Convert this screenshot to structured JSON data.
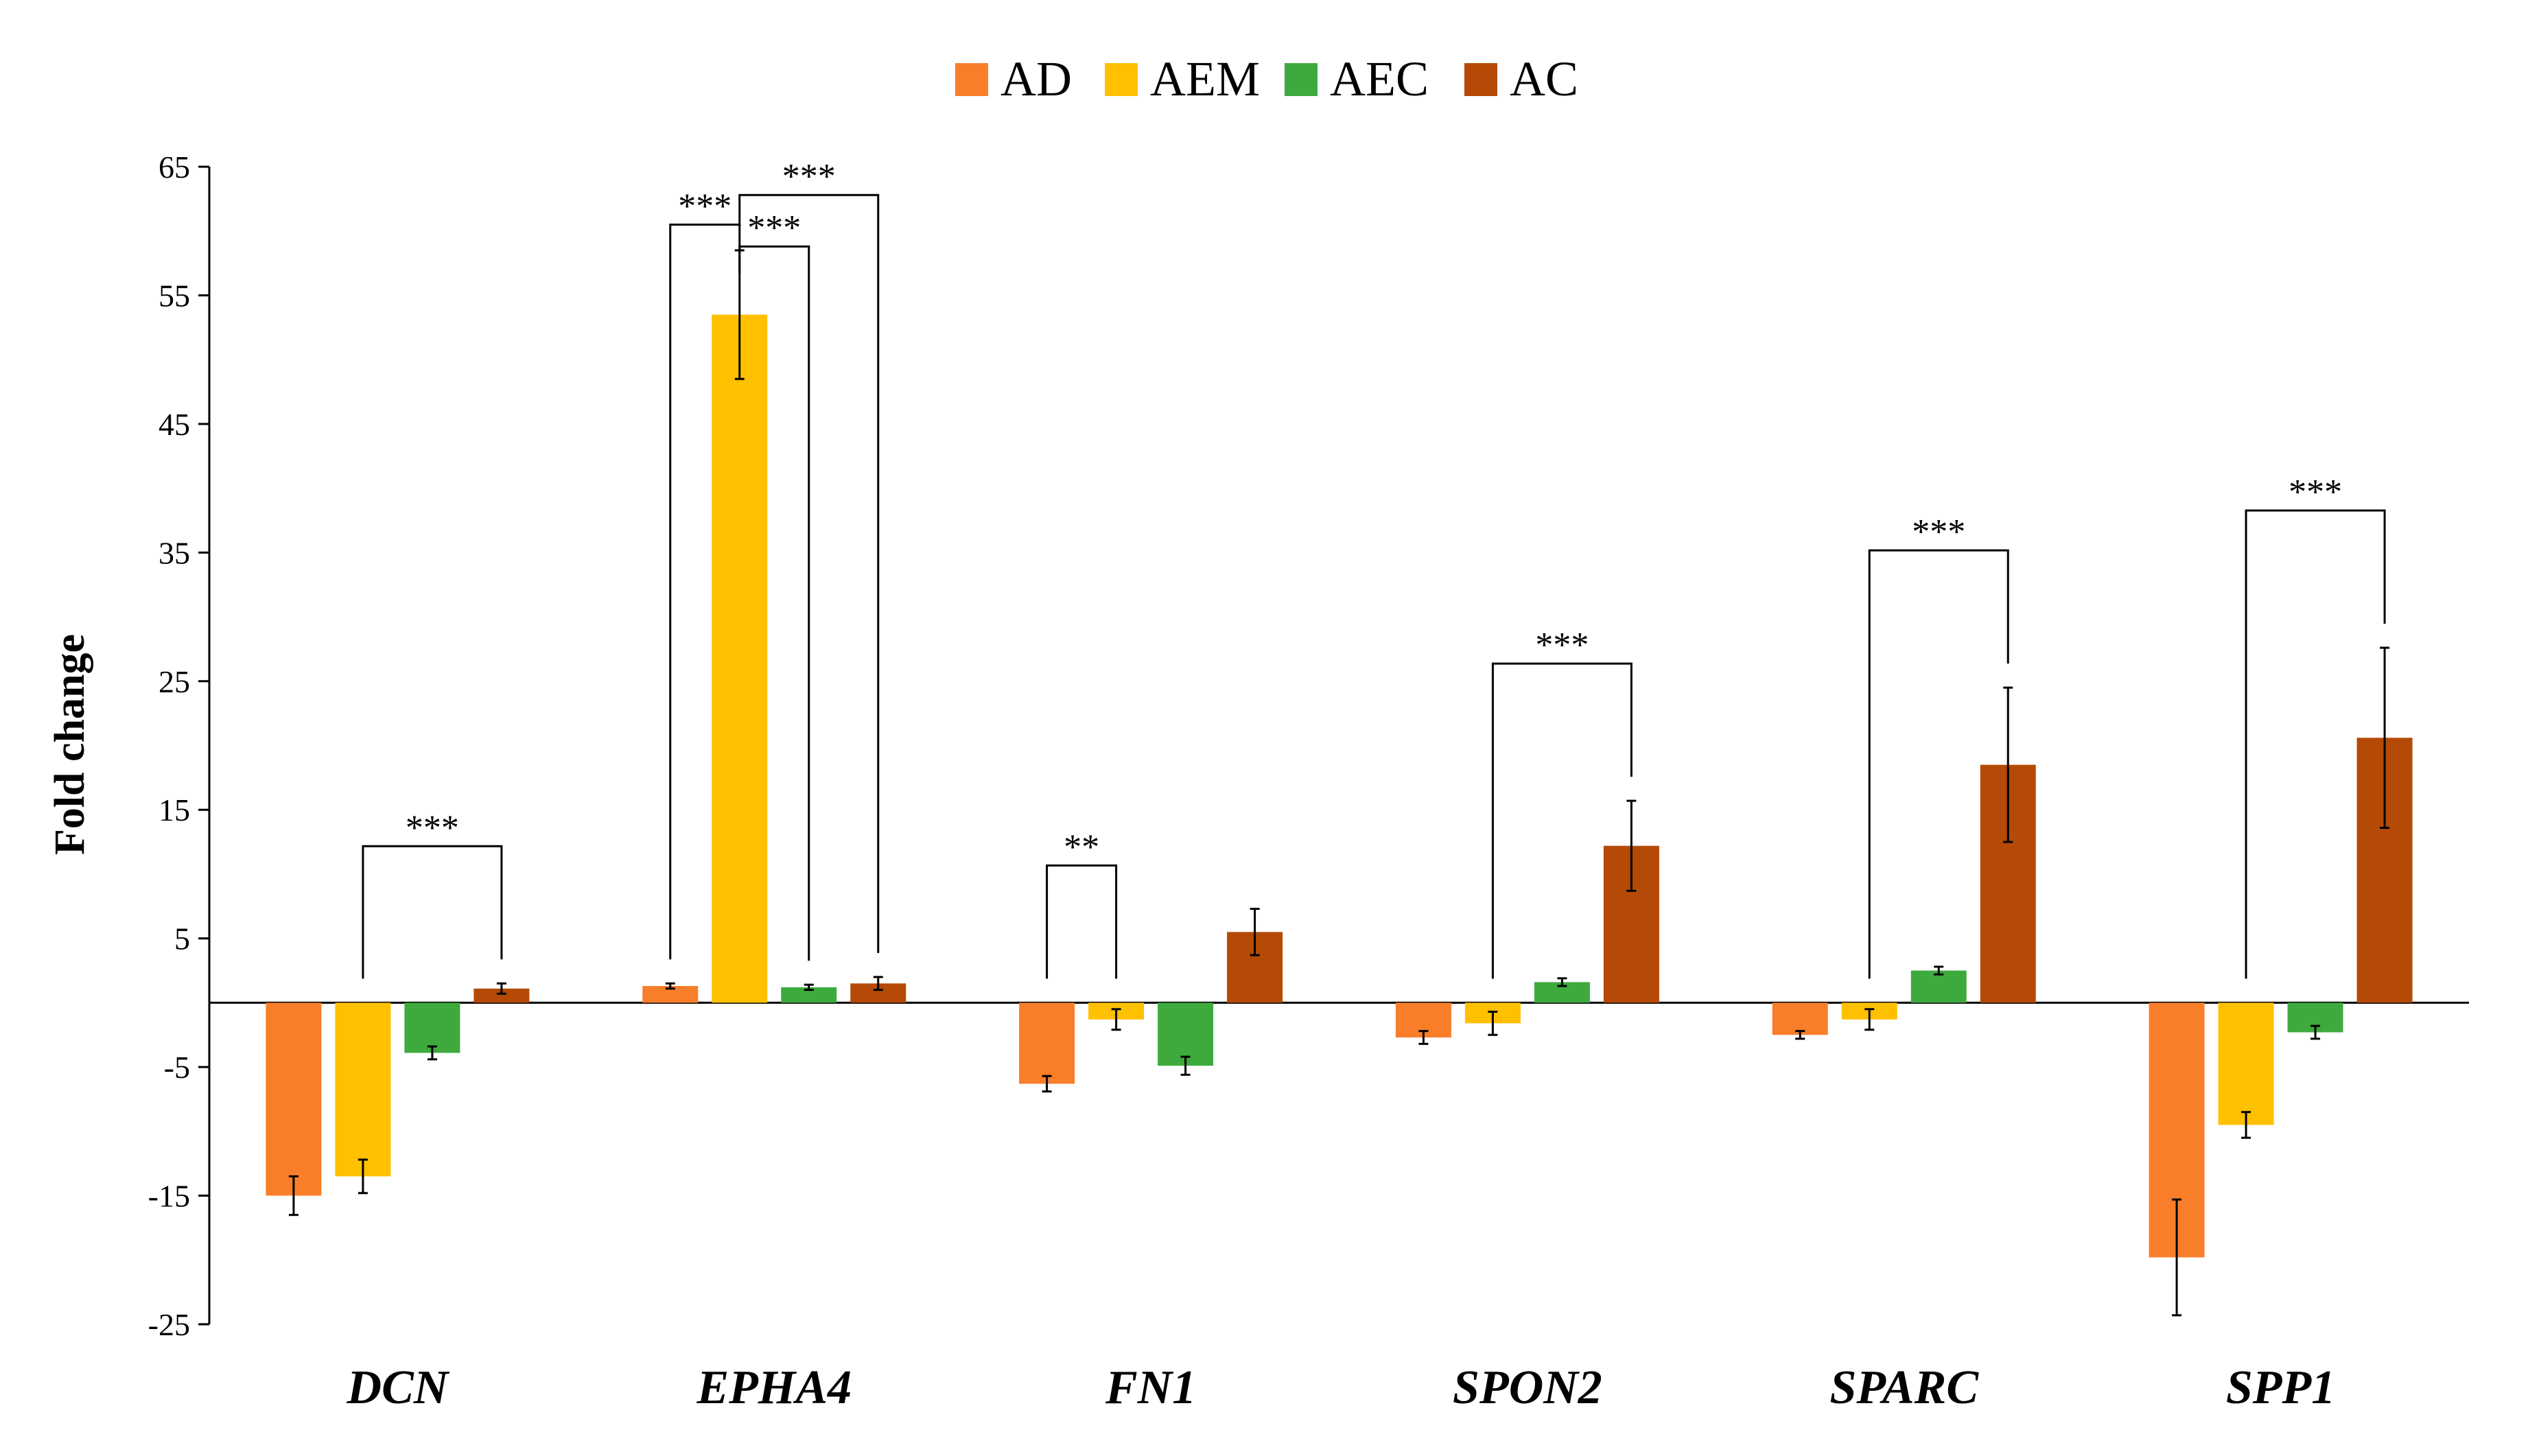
{
  "chart_data": {
    "type": "bar",
    "title": "",
    "xlabel": "",
    "ylabel": "Fold change",
    "ylim": [
      -25,
      65
    ],
    "yticks": [
      65,
      55,
      45,
      35,
      25,
      15,
      5,
      -5,
      -15,
      -25
    ],
    "grid": false,
    "legend_position": "top-center",
    "categories": [
      "DCN",
      "EPHA4",
      "FN1",
      "SPON2",
      "SPARC",
      "SPP1"
    ],
    "series": [
      {
        "name": "AD",
        "color": "#F97E2A",
        "values": [
          -15.0,
          1.3,
          -6.3,
          -2.7,
          -2.5,
          -19.8
        ],
        "errors": [
          1.5,
          0.2,
          0.6,
          0.5,
          0.3,
          4.5
        ]
      },
      {
        "name": "AEM",
        "color": "#FFC000",
        "values": [
          -13.5,
          53.5,
          -1.3,
          -1.6,
          -1.3,
          -9.5
        ],
        "errors": [
          1.3,
          5.0,
          0.8,
          0.9,
          0.8,
          1.0
        ]
      },
      {
        "name": "AEC",
        "color": "#3EAA3E",
        "values": [
          -3.9,
          1.2,
          -4.9,
          1.6,
          2.5,
          -2.3
        ],
        "errors": [
          0.5,
          0.2,
          0.7,
          0.3,
          0.3,
          0.5
        ]
      },
      {
        "name": "AC",
        "color": "#B44A05",
        "values": [
          1.1,
          1.5,
          5.5,
          12.2,
          18.5,
          20.6
        ],
        "errors": [
          0.4,
          0.5,
          1.8,
          3.5,
          6.0,
          7.0
        ]
      }
    ],
    "significance": [
      {
        "category": "DCN",
        "from": "AEM",
        "to": "AC",
        "label": "***"
      },
      {
        "category": "EPHA4",
        "from": "AD",
        "to": "AEM",
        "label": "***"
      },
      {
        "category": "EPHA4",
        "from": "AEM",
        "to": "AEC",
        "label": "***"
      },
      {
        "category": "EPHA4",
        "from": "AEM",
        "to": "AC",
        "label": "***"
      },
      {
        "category": "FN1",
        "from": "AD",
        "to": "AEM",
        "label": "**"
      },
      {
        "category": "SPON2",
        "from": "AEM",
        "to": "AC",
        "label": "***"
      },
      {
        "category": "SPARC",
        "from": "AEM",
        "to": "AC",
        "label": "***"
      },
      {
        "category": "SPP1",
        "from": "AEM",
        "to": "AC",
        "label": "***"
      }
    ]
  }
}
